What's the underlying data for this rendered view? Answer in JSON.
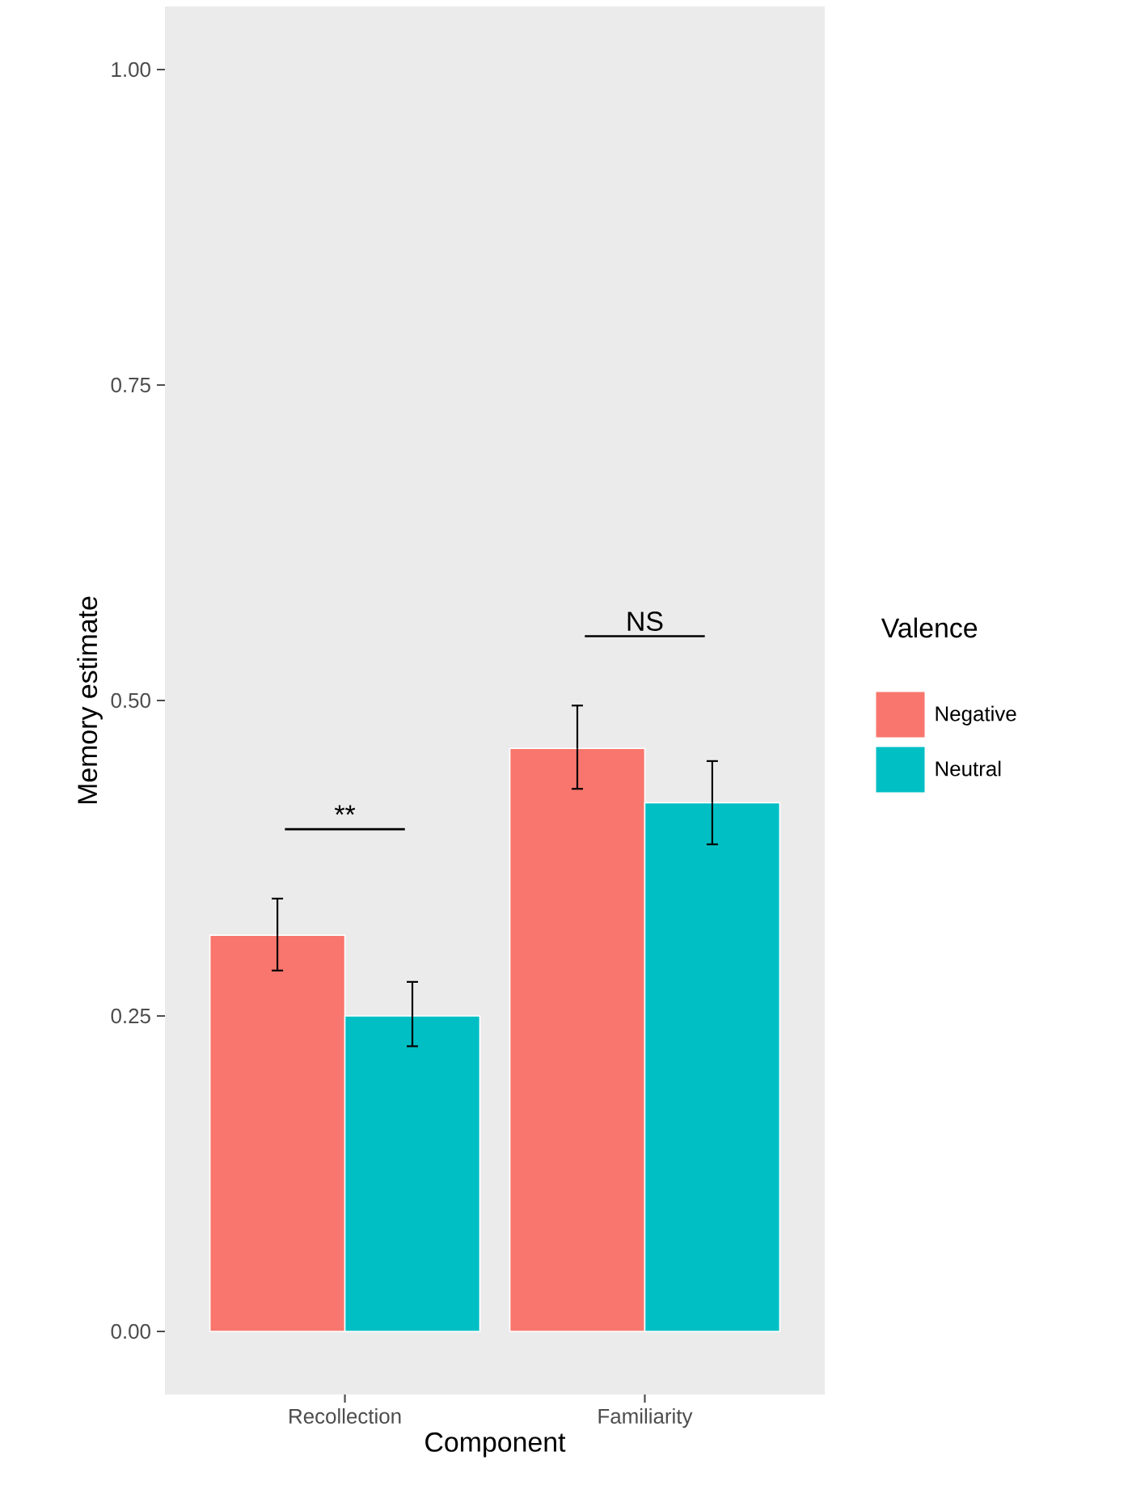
{
  "chart_data": {
    "type": "bar",
    "xlabel": "Component",
    "ylabel": "Memory estimate",
    "legend_title": "Valence",
    "legend": "right",
    "categories": [
      "Recollection",
      "Familiarity"
    ],
    "series": [
      {
        "name": "Negative",
        "color": "#f8766d",
        "values": [
          0.314,
          0.462
        ],
        "errors": [
          [
            0.286,
            0.343
          ],
          [
            0.43,
            0.496
          ]
        ]
      },
      {
        "name": "Neutral",
        "color": "#00bfc4",
        "values": [
          0.25,
          0.419
        ],
        "errors": [
          [
            0.226,
            0.277
          ],
          [
            0.386,
            0.452
          ]
        ]
      }
    ],
    "ylim": [
      -0.05,
      1.05
    ],
    "yticks": [
      {
        "value": 0,
        "label": "0.00"
      },
      {
        "value": 0.25,
        "label": "0.25"
      },
      {
        "value": 0.5,
        "label": "0.50"
      },
      {
        "value": 0.75,
        "label": "0.75"
      },
      {
        "value": 1,
        "label": "1.00"
      }
    ],
    "grid": false,
    "annotations": [
      "**",
      "NS"
    ]
  }
}
